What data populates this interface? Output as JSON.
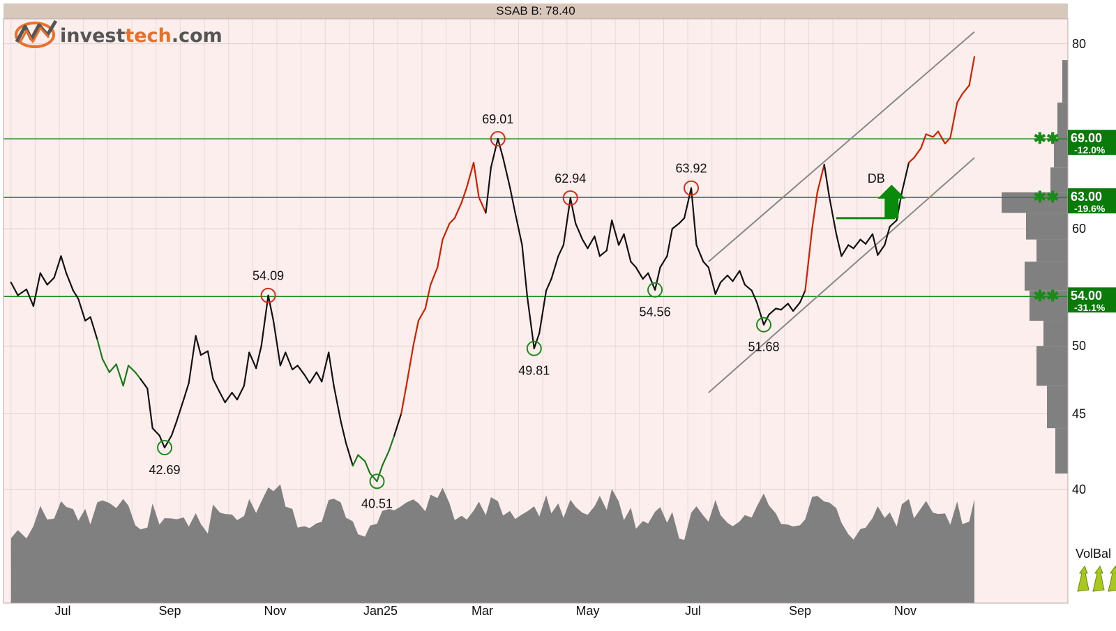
{
  "header": {
    "title": "SSAB B: 78.40"
  },
  "logo": {
    "text_dark": "invest",
    "text_orange": "tech",
    "text_tail": ".com"
  },
  "colors": {
    "background": "#fdeeee",
    "header_bar": "#d8c8bc",
    "price_line": "#111111",
    "price_up": "#cc2200",
    "price_down": "#1a7a1a",
    "support_line": "#1a8a1a",
    "channel_line": "#888888",
    "volume_fill": "#808080",
    "profile_fill": "#808080",
    "label_box": "#0a7a0a",
    "arrow": "#0a8a0a",
    "logo_orange": "#e8702a",
    "logo_dark": "#555555",
    "volbal_arrow": "#a8c820"
  },
  "chart_data": {
    "type": "line",
    "title": "SSAB B: 78.40",
    "y_axis_scale": "log",
    "ylim": [
      40,
      82
    ],
    "y_ticks": [
      40,
      45,
      50,
      60,
      80
    ],
    "x_ticks": [
      "Jul",
      "Sep",
      "Nov",
      "Jan25",
      "Mar",
      "May",
      "Jul",
      "Sep",
      "Nov"
    ],
    "x_tick_dates": [
      "2024-07-01",
      "2024-09-01",
      "2024-11-01",
      "2025-01-01",
      "2025-03-01",
      "2025-05-01",
      "2025-07-01",
      "2025-09-01",
      "2025-11-01"
    ],
    "series": [
      {
        "values": [
          [
            "2024-06-01",
            55.2
          ],
          [
            "2024-06-05",
            54.1
          ],
          [
            "2024-06-10",
            54.6
          ],
          [
            "2024-06-14",
            53.2
          ],
          [
            "2024-06-18",
            56.0
          ],
          [
            "2024-06-22",
            55.0
          ],
          [
            "2024-06-26",
            55.6
          ],
          [
            "2024-06-30",
            57.5
          ],
          [
            "2024-07-03",
            56.0
          ],
          [
            "2024-07-07",
            54.5
          ],
          [
            "2024-07-10",
            53.8
          ],
          [
            "2024-07-14",
            52.0
          ],
          [
            "2024-07-17",
            52.3
          ],
          [
            "2024-07-21",
            50.5
          ],
          [
            "2024-07-24",
            49.0
          ],
          [
            "2024-07-28",
            48.0
          ],
          [
            "2024-08-01",
            48.6
          ],
          [
            "2024-08-05",
            47.0
          ],
          [
            "2024-08-08",
            48.5
          ],
          [
            "2024-08-12",
            48.0
          ],
          [
            "2024-08-15",
            47.5
          ],
          [
            "2024-08-19",
            46.8
          ],
          [
            "2024-08-22",
            44.0
          ],
          [
            "2024-08-26",
            43.5
          ],
          [
            "2024-08-29",
            42.69
          ],
          [
            "2024-09-02",
            43.5
          ],
          [
            "2024-09-05",
            44.5
          ],
          [
            "2024-09-09",
            46.0
          ],
          [
            "2024-09-12",
            47.2
          ],
          [
            "2024-09-16",
            50.8
          ],
          [
            "2024-09-19",
            49.3
          ],
          [
            "2024-09-23",
            49.6
          ],
          [
            "2024-09-26",
            47.5
          ],
          [
            "2024-09-30",
            46.5
          ],
          [
            "2024-10-03",
            45.8
          ],
          [
            "2024-10-07",
            46.5
          ],
          [
            "2024-10-10",
            46.0
          ],
          [
            "2024-10-14",
            47.0
          ],
          [
            "2024-10-17",
            49.5
          ],
          [
            "2024-10-21",
            48.3
          ],
          [
            "2024-10-24",
            50.0
          ],
          [
            "2024-10-28",
            54.09
          ],
          [
            "2024-10-31",
            52.0
          ],
          [
            "2024-11-04",
            48.5
          ],
          [
            "2024-11-07",
            49.5
          ],
          [
            "2024-11-11",
            48.2
          ],
          [
            "2024-11-14",
            48.5
          ],
          [
            "2024-11-18",
            47.8
          ],
          [
            "2024-11-21",
            47.2
          ],
          [
            "2024-11-25",
            48.0
          ],
          [
            "2024-11-28",
            47.3
          ],
          [
            "2024-12-02",
            49.5
          ],
          [
            "2024-12-05",
            47.0
          ],
          [
            "2024-12-09",
            44.5
          ],
          [
            "2024-12-12",
            43.0
          ],
          [
            "2024-12-16",
            41.5
          ],
          [
            "2024-12-19",
            42.2
          ],
          [
            "2024-12-23",
            41.8
          ],
          [
            "2024-12-26",
            41.0
          ],
          [
            "2024-12-30",
            40.51
          ],
          [
            "2025-01-02",
            41.5
          ],
          [
            "2025-01-06",
            42.5
          ],
          [
            "2025-01-09",
            43.5
          ],
          [
            "2025-01-13",
            45.0
          ],
          [
            "2025-01-16",
            47.0
          ],
          [
            "2025-01-20",
            50.0
          ],
          [
            "2025-01-23",
            52.0
          ],
          [
            "2025-01-27",
            53.0
          ],
          [
            "2025-01-30",
            55.0
          ],
          [
            "2025-02-03",
            56.5
          ],
          [
            "2025-02-06",
            59.0
          ],
          [
            "2025-02-10",
            60.5
          ],
          [
            "2025-02-13",
            61.0
          ],
          [
            "2025-02-17",
            62.5
          ],
          [
            "2025-02-20",
            64.0
          ],
          [
            "2025-02-24",
            66.5
          ],
          [
            "2025-02-27",
            63.0
          ],
          [
            "2025-03-03",
            61.5
          ],
          [
            "2025-03-06",
            66.0
          ],
          [
            "2025-03-10",
            69.01
          ],
          [
            "2025-03-13",
            67.0
          ],
          [
            "2025-03-17",
            64.0
          ],
          [
            "2025-03-20",
            61.5
          ],
          [
            "2025-03-24",
            58.5
          ],
          [
            "2025-03-27",
            54.0
          ],
          [
            "2025-03-31",
            49.81
          ],
          [
            "2025-04-03",
            51.0
          ],
          [
            "2025-04-07",
            54.5
          ],
          [
            "2025-04-10",
            55.5
          ],
          [
            "2025-04-14",
            57.5
          ],
          [
            "2025-04-17",
            58.5
          ],
          [
            "2025-04-21",
            62.94
          ],
          [
            "2025-04-24",
            60.5
          ],
          [
            "2025-04-28",
            59.0
          ],
          [
            "2025-05-01",
            58.2
          ],
          [
            "2025-05-05",
            59.3
          ],
          [
            "2025-05-08",
            57.5
          ],
          [
            "2025-05-12",
            58.0
          ],
          [
            "2025-05-15",
            60.8
          ],
          [
            "2025-05-19",
            58.5
          ],
          [
            "2025-05-22",
            59.5
          ],
          [
            "2025-05-26",
            57.0
          ],
          [
            "2025-05-29",
            56.5
          ],
          [
            "2025-06-02",
            55.5
          ],
          [
            "2025-06-05",
            56.0
          ],
          [
            "2025-06-09",
            54.56
          ],
          [
            "2025-06-12",
            56.5
          ],
          [
            "2025-06-16",
            57.5
          ],
          [
            "2025-06-19",
            60.0
          ],
          [
            "2025-06-23",
            60.5
          ],
          [
            "2025-06-26",
            61.0
          ],
          [
            "2025-06-30",
            63.92
          ],
          [
            "2025-07-03",
            58.5
          ],
          [
            "2025-07-07",
            57.0
          ],
          [
            "2025-07-10",
            56.5
          ],
          [
            "2025-07-14",
            54.2
          ],
          [
            "2025-07-17",
            55.2
          ],
          [
            "2025-07-21",
            55.8
          ],
          [
            "2025-07-24",
            55.3
          ],
          [
            "2025-07-28",
            56.2
          ],
          [
            "2025-07-31",
            55.0
          ],
          [
            "2025-08-04",
            54.5
          ],
          [
            "2025-08-07",
            53.5
          ],
          [
            "2025-08-11",
            51.68
          ],
          [
            "2025-08-14",
            52.5
          ],
          [
            "2025-08-18",
            53.0
          ],
          [
            "2025-08-21",
            52.9
          ],
          [
            "2025-08-25",
            53.4
          ],
          [
            "2025-08-28",
            52.8
          ],
          [
            "2025-09-01",
            53.5
          ],
          [
            "2025-09-04",
            54.5
          ],
          [
            "2025-09-08",
            60.0
          ],
          [
            "2025-09-11",
            63.5
          ],
          [
            "2025-09-15",
            66.3
          ],
          [
            "2025-09-18",
            63.0
          ],
          [
            "2025-09-22",
            59.5
          ],
          [
            "2025-09-25",
            57.5
          ],
          [
            "2025-09-29",
            58.5
          ],
          [
            "2025-10-02",
            58.2
          ],
          [
            "2025-10-06",
            59.0
          ],
          [
            "2025-10-09",
            58.6
          ],
          [
            "2025-10-13",
            59.5
          ],
          [
            "2025-10-16",
            57.6
          ],
          [
            "2025-10-20",
            58.5
          ],
          [
            "2025-10-23",
            60.2
          ],
          [
            "2025-10-27",
            60.8
          ],
          [
            "2025-10-30",
            63.5
          ],
          [
            "2025-11-03",
            66.5
          ],
          [
            "2025-11-06",
            67.0
          ],
          [
            "2025-11-10",
            68.0
          ],
          [
            "2025-11-13",
            69.5
          ],
          [
            "2025-11-17",
            69.2
          ],
          [
            "2025-11-20",
            69.8
          ],
          [
            "2025-11-24",
            68.5
          ],
          [
            "2025-11-27",
            69.1
          ],
          [
            "2025-12-01",
            73.0
          ],
          [
            "2025-12-04",
            74.0
          ],
          [
            "2025-12-08",
            75.0
          ],
          [
            "2025-12-11",
            78.4
          ]
        ]
      }
    ],
    "support_resistance": [
      {
        "level": 69.0,
        "label": "69.00",
        "pct": "-12.0%"
      },
      {
        "level": 63.0,
        "label": "63.00",
        "pct": "-19.6%"
      },
      {
        "level": 54.0,
        "label": "54.00",
        "pct": "-31.1%"
      }
    ],
    "annotations": [
      {
        "date": "2024-08-29",
        "value": 42.69,
        "label": "42.69",
        "type": "low"
      },
      {
        "date": "2024-10-28",
        "value": 54.09,
        "label": "54.09",
        "type": "high"
      },
      {
        "date": "2024-12-30",
        "value": 40.51,
        "label": "40.51",
        "type": "low"
      },
      {
        "date": "2025-03-10",
        "value": 69.01,
        "label": "69.01",
        "type": "high"
      },
      {
        "date": "2025-03-31",
        "value": 49.81,
        "label": "49.81",
        "type": "low"
      },
      {
        "date": "2025-04-21",
        "value": 62.94,
        "label": "62.94",
        "type": "high"
      },
      {
        "date": "2025-06-09",
        "value": 54.56,
        "label": "54.56",
        "type": "low"
      },
      {
        "date": "2025-06-30",
        "value": 63.92,
        "label": "63.92",
        "type": "high"
      },
      {
        "date": "2025-08-11",
        "value": 51.68,
        "label": "51.68",
        "type": "low"
      }
    ],
    "pattern": {
      "label": "DB",
      "date": "2025-10-20",
      "value": 61.0,
      "direction": "up",
      "neckline_from": "2025-09-22",
      "neckline_to": "2025-10-20",
      "neckline_value": 61.0
    },
    "trend_channel": {
      "upper": [
        [
          "2025-07-10",
          57.0
        ],
        [
          "2025-12-11",
          81.5
        ]
      ],
      "lower": [
        [
          "2025-07-10",
          46.5
        ],
        [
          "2025-12-11",
          67.0
        ]
      ]
    },
    "volume_balance": {
      "label": "VolBal",
      "signal": "rising"
    },
    "grid": true,
    "legend": "none"
  }
}
